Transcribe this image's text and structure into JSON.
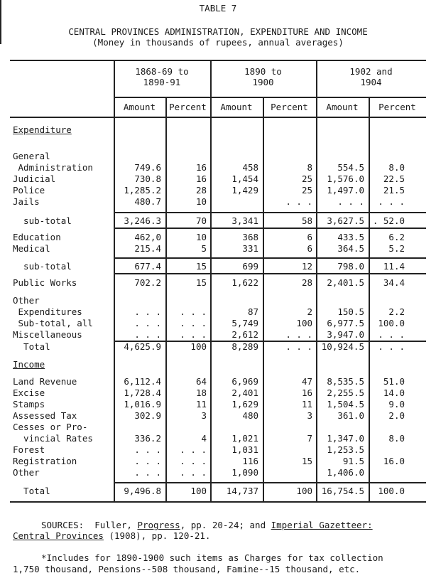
{
  "title": "TABLE 7",
  "heading": "CENTRAL PROVINCES ADMINISTRATION, EXPENDITURE AND INCOME",
  "subheading": "(Money in thousands of rupees, annual averages)",
  "periods": [
    "1868-69 to\n1890-91",
    "1890 to\n1900",
    "1902 and\n1904"
  ],
  "col_headers": [
    "Amount",
    "Percent",
    "Amount",
    "Percent",
    "Amount",
    "Percent"
  ],
  "rows": [
    {
      "label": "Expenditure",
      "type": "section"
    },
    {
      "label": "General",
      "type": "text"
    },
    {
      "label": " Administration",
      "cells": [
        "749.6",
        "16",
        "458",
        "8",
        "554.5",
        "8.0"
      ]
    },
    {
      "label": "Judicial",
      "cells": [
        "730.8",
        "16",
        "1,454",
        "25",
        "1,576.0",
        "22.5"
      ]
    },
    {
      "label": "Police",
      "cells": [
        "1,285.2",
        "28",
        "1,429",
        "25",
        "1,497.0",
        "21.5"
      ]
    },
    {
      "label": "Jails",
      "cells": [
        "480.7",
        "10",
        "",
        ". . .",
        ". . .",
        ". . ."
      ]
    },
    {
      "label": "  sub-total",
      "cells": [
        "3,246.3",
        "70",
        "3,341",
        "58",
        "3,627.5",
        ". 52.0"
      ]
    },
    {
      "label": "Education",
      "cells": [
        "462,0",
        "10",
        "368",
        "6",
        "433.5",
        "6.2"
      ]
    },
    {
      "label": "Medical",
      "cells": [
        "215.4",
        "5",
        "331",
        "6",
        "364.5",
        "5.2"
      ]
    },
    {
      "label": "  sub-total",
      "cells": [
        "677.4",
        "15",
        "699",
        "12",
        "798.0",
        "11.4"
      ]
    },
    {
      "label": "Public Works",
      "cells": [
        "702.2",
        "15",
        "1,622",
        "28",
        "2,401.5",
        "34.4"
      ]
    },
    {
      "label": "Other",
      "type": "text"
    },
    {
      "label": " Expenditures",
      "cells": [
        ". . .",
        ". . .",
        "87",
        "2",
        "150.5",
        "2.2"
      ]
    },
    {
      "label": " Sub-total, all",
      "cells": [
        ". . .",
        ". . .",
        "5,749",
        "100",
        "6,977.5",
        "100.0"
      ]
    },
    {
      "label": "Miscellaneous",
      "cells": [
        ". . .",
        ". . .",
        "2,612",
        ". . .",
        "3,947.0",
        ". . ."
      ]
    },
    {
      "label": "  Total",
      "cells": [
        "4,625.9",
        "100",
        "8,289",
        ". . .",
        "10,924.5",
        ". . ."
      ]
    },
    {
      "label": "Income",
      "type": "section"
    },
    {
      "label": "Land Revenue",
      "cells": [
        "6,112.4",
        "64",
        "6,969",
        "47",
        "8,535.5",
        "51.0"
      ]
    },
    {
      "label": "Excise",
      "cells": [
        "1,728.4",
        "18",
        "2,401",
        "16",
        "2,255.5",
        "14.0"
      ]
    },
    {
      "label": "Stamps",
      "cells": [
        "1,016.9",
        "11",
        "1,629",
        "11",
        "1,504.5",
        "9.0"
      ]
    },
    {
      "label": "Assessed Tax",
      "cells": [
        "302.9",
        "3",
        "480",
        "3",
        "361.0",
        "2.0"
      ]
    },
    {
      "label": "Cesses or Pro-",
      "type": "text"
    },
    {
      "label": "  vincial Rates",
      "cells": [
        "336.2",
        "4",
        "1,021",
        "7",
        "1,347.0",
        "8.0"
      ]
    },
    {
      "label": "Forest",
      "cells": [
        ". . .",
        ". . .",
        "1,031",
        "",
        "1,253.5",
        ""
      ]
    },
    {
      "label": "Registration",
      "cells": [
        ". . .",
        ". . .",
        "116",
        "15",
        "91.5",
        "16.0"
      ]
    },
    {
      "label": "Other",
      "cells": [
        ". . .",
        ". . .",
        "1,090",
        "",
        "1,406.0",
        ""
      ]
    },
    {
      "label": "  Total",
      "cells": [
        "9,496.8",
        "100",
        "14,737",
        "100",
        "16,754.5",
        "100.0"
      ]
    }
  ],
  "sources": {
    "prefix": "SOURCES:  Fuller, ",
    "progress": "Progress",
    "mid": ", pp. 20-24; and ",
    "gazetteer": "Imperial Gazetteer:",
    "cp": "Central Provinces",
    "end": " (1908), pp. 120-21."
  },
  "footnote": [
    "*Includes for 1890-1900 such items as Charges for tax collection",
    "1,750 thousand, Pensions--508 thousand, Famine--15 thousand, etc."
  ]
}
